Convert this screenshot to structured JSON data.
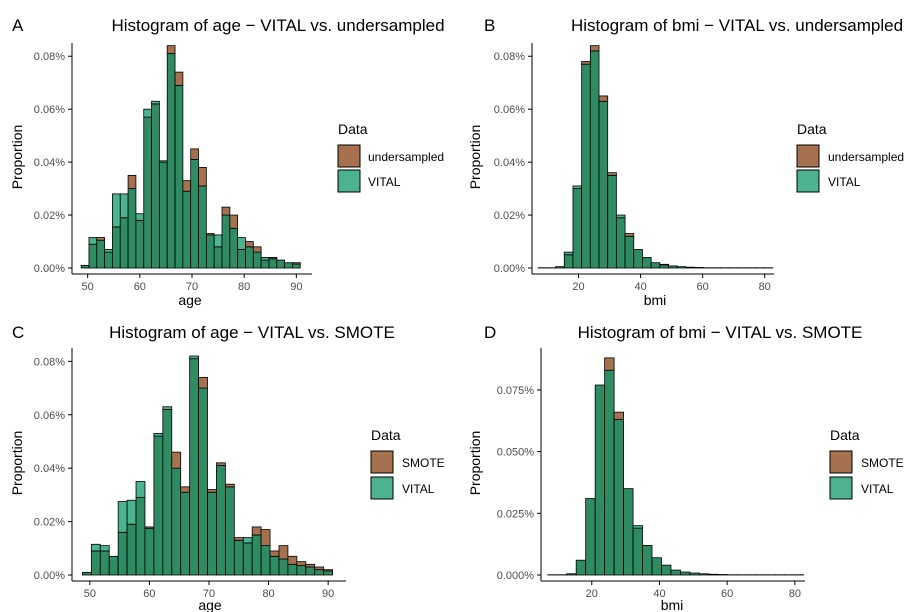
{
  "colors": {
    "VITAL": "#4DB38F",
    "other": "#A6714E",
    "overlap": "#2E8B62",
    "axis": "#000000"
  },
  "chart_data": [
    {
      "panel_label": "A",
      "type": "bar",
      "title": "Histogram of age − VITAL vs. undersampled",
      "xlabel": "age",
      "ylabel": "Proportion",
      "xlim": [
        47,
        93
      ],
      "ylim": [
        0,
        0.00085
      ],
      "xticks": [
        50,
        60,
        70,
        80,
        90
      ],
      "yticks": [
        0,
        0.0002,
        0.0004,
        0.0006,
        0.0008
      ],
      "ytick_labels": [
        "0.00%",
        "0.02%",
        "0.04%",
        "0.06%",
        "0.08%"
      ],
      "bin_width": 1.5,
      "x": [
        49.5,
        51,
        52.5,
        54,
        55.5,
        57,
        58.5,
        60,
        61.5,
        63,
        64.5,
        66,
        67.5,
        69,
        70.5,
        72,
        73.5,
        75,
        76.5,
        78,
        79.5,
        81,
        82.5,
        84,
        85.5,
        87,
        88.5,
        90
      ],
      "legend_title": "Data",
      "legend_position": "right",
      "series": [
        {
          "name": "undersampled",
          "values": [
            1e-05,
            9e-05,
            0.000115,
            6e-05,
            0.000155,
            0.00019,
            0.00035,
            0.00018,
            0.00057,
            0.00062,
            0.0004,
            0.00084,
            0.00074,
            0.00033,
            0.00045,
            0.00038,
            0.00013,
            8e-05,
            0.00023,
            0.0002,
            7e-05,
            0.0001,
            8e-05,
            3e-05,
            4e-05,
            3e-05,
            2e-05,
            2e-05
          ]
        },
        {
          "name": "VITAL",
          "values": [
            1e-05,
            0.000115,
            0.000105,
            7e-05,
            0.00028,
            0.00028,
            0.0003,
            0.000205,
            0.0006,
            0.00063,
            0.000405,
            0.00081,
            0.00069,
            0.00029,
            0.00041,
            0.00031,
            0.000125,
            0.000125,
            0.0002,
            0.00015,
            0.000115,
            8e-05,
            6e-05,
            4e-05,
            3.5e-05,
            3e-05,
            2e-05,
            1.5e-05
          ]
        }
      ]
    },
    {
      "panel_label": "B",
      "type": "bar",
      "title": "Histogram of bmi − VITAL vs. undersampled",
      "xlabel": "bmi",
      "ylabel": "Proportion",
      "xlim": [
        5,
        83
      ],
      "ylim": [
        0,
        0.00085
      ],
      "xticks": [
        20,
        40,
        60,
        80
      ],
      "yticks": [
        0,
        0.0002,
        0.0004,
        0.0006,
        0.0008
      ],
      "ytick_labels": [
        "0.00%",
        "0.02%",
        "0.04%",
        "0.06%",
        "0.08%"
      ],
      "bin_width": 2.8,
      "x": [
        8.4,
        11.2,
        14,
        16.8,
        19.6,
        22.4,
        25.2,
        28,
        30.8,
        33.6,
        36.4,
        39.2,
        42,
        44.8,
        47.6,
        50.4,
        53.2,
        56,
        58.8,
        61.6,
        64.4,
        67.2,
        70,
        72.8,
        75.6,
        78.4,
        81.2
      ],
      "legend_title": "Data",
      "legend_position": "right",
      "series": [
        {
          "name": "undersampled",
          "values": [
            1e-06,
            1e-06,
            5e-06,
            5e-05,
            0.0003,
            0.00078,
            0.00084,
            0.00065,
            0.00036,
            0.00019,
            0.00013,
            7e-05,
            4e-05,
            2e-05,
            1.4e-05,
            8e-06,
            5e-06,
            3e-06,
            2e-06,
            1e-06,
            1e-06,
            1e-06,
            1e-06,
            1e-06,
            1e-06,
            1e-06,
            1e-06
          ]
        },
        {
          "name": "VITAL",
          "values": [
            1e-06,
            1e-06,
            5e-06,
            6e-05,
            0.00031,
            0.00077,
            0.00082,
            0.00063,
            0.00035,
            0.0002,
            0.00012,
            7e-05,
            4e-05,
            2e-05,
            1.2e-05,
            8e-06,
            5e-06,
            3e-06,
            2e-06,
            1e-06,
            1e-06,
            1e-06,
            1e-06,
            1e-06,
            1e-06,
            1e-06,
            1e-06
          ]
        }
      ]
    },
    {
      "panel_label": "C",
      "type": "bar",
      "title": "Histogram of age − VITAL vs. SMOTE",
      "xlabel": "age",
      "ylabel": "Proportion",
      "xlim": [
        47,
        93
      ],
      "ylim": [
        0,
        0.00085
      ],
      "xticks": [
        50,
        60,
        70,
        80,
        90
      ],
      "yticks": [
        0,
        0.0002,
        0.0004,
        0.0006,
        0.0008
      ],
      "ytick_labels": [
        "0.00%",
        "0.02%",
        "0.04%",
        "0.06%",
        "0.08%"
      ],
      "bin_width": 1.5,
      "x": [
        49.5,
        51,
        52.5,
        54,
        55.5,
        57,
        58.5,
        60,
        61.5,
        63,
        64.5,
        66,
        67.5,
        69,
        70.5,
        72,
        73.5,
        75,
        76.5,
        78,
        79.5,
        81,
        82.5,
        84,
        85.5,
        87,
        88.5,
        90
      ],
      "legend_title": "Data",
      "legend_position": "right",
      "series": [
        {
          "name": "SMOTE",
          "values": [
            1e-05,
            9e-05,
            9e-05,
            7e-05,
            0.00016,
            0.00019,
            0.00029,
            0.00018,
            0.00052,
            0.00062,
            0.00046,
            0.00033,
            0.00081,
            0.00074,
            0.00032,
            0.00042,
            0.00034,
            0.00014,
            0.00012,
            0.00018,
            0.00017,
            9e-05,
            0.00011,
            7e-05,
            5e-05,
            4e-05,
            3e-05,
            2e-05
          ]
        },
        {
          "name": "VITAL",
          "values": [
            1e-05,
            0.000115,
            0.00011,
            7e-05,
            0.000275,
            0.00028,
            0.00035,
            0.000175,
            0.00053,
            0.00063,
            0.0004,
            0.00031,
            0.00082,
            0.0007,
            0.00031,
            0.00041,
            0.00033,
            0.00013,
            0.00014,
            0.00015,
            0.00011,
            7e-05,
            6e-05,
            4e-05,
            3.5e-05,
            3e-05,
            2e-05,
            1.5e-05
          ]
        }
      ]
    },
    {
      "panel_label": "D",
      "type": "bar",
      "title": "Histogram of bmi − VITAL vs. SMOTE",
      "xlabel": "bmi",
      "ylabel": "Proportion",
      "xlim": [
        5,
        83
      ],
      "ylim": [
        0,
        0.00092
      ],
      "xticks": [
        20,
        40,
        60,
        80
      ],
      "yticks": [
        0,
        0.00025,
        0.0005,
        0.00075
      ],
      "ytick_labels": [
        "0.000%",
        "0.025%",
        "0.050%",
        "0.075%"
      ],
      "bin_width": 2.8,
      "x": [
        8.4,
        11.2,
        14,
        16.8,
        19.6,
        22.4,
        25.2,
        28,
        30.8,
        33.6,
        36.4,
        39.2,
        42,
        44.8,
        47.6,
        50.4,
        53.2,
        56,
        58.8,
        61.6,
        64.4,
        67.2,
        70,
        72.8,
        75.6,
        78.4,
        81.2
      ],
      "legend_title": "Data",
      "legend_position": "right",
      "series": [
        {
          "name": "SMOTE",
          "values": [
            1e-06,
            1e-06,
            5e-06,
            6e-05,
            0.00031,
            0.00077,
            0.00088,
            0.00066,
            0.00035,
            0.00019,
            0.00012,
            7e-05,
            4e-05,
            2e-05,
            1.2e-05,
            8e-06,
            5e-06,
            3e-06,
            2e-06,
            1e-06,
            1e-06,
            1e-06,
            1e-06,
            1e-06,
            1e-06,
            1e-06,
            1e-06
          ]
        },
        {
          "name": "VITAL",
          "values": [
            1e-06,
            1e-06,
            5e-06,
            6e-05,
            0.00031,
            0.00077,
            0.00083,
            0.00063,
            0.00035,
            0.0002,
            0.00012,
            7e-05,
            4e-05,
            2e-05,
            1.2e-05,
            8e-06,
            5e-06,
            3e-06,
            2e-06,
            1e-06,
            1e-06,
            1e-06,
            1e-06,
            1e-06,
            1e-06,
            1e-06,
            1e-06
          ]
        }
      ]
    }
  ]
}
